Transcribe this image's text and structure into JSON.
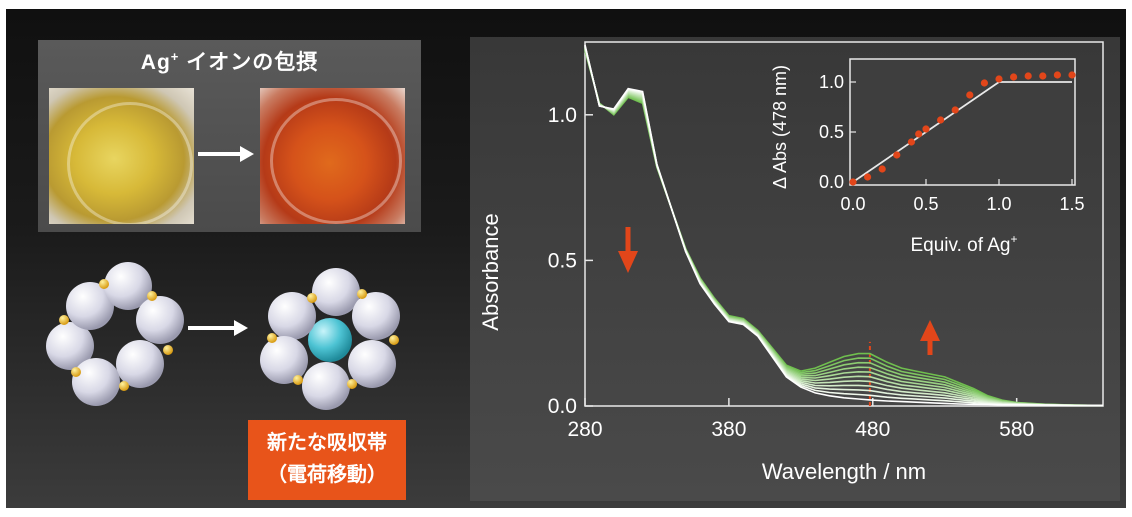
{
  "photos": {
    "title_main": "Ag",
    "title_sup": "+",
    "title_rest": " イオンの包摂",
    "before_color": "#d7b938",
    "after_color": "#d5521a"
  },
  "band_label": {
    "line1": "新たな吸収帯",
    "line2": "（電荷移動）",
    "color": "#e8541a"
  },
  "chart_data": [
    {
      "type": "line",
      "xlabel": "Wavelength / nm",
      "ylabel": "Absorbance",
      "xlim": [
        280,
        640
      ],
      "ylim": [
        0,
        1.25
      ],
      "xticks": [
        280,
        380,
        480,
        580
      ],
      "yticks": [
        0.0,
        0.5,
        1.0
      ],
      "ytick_labels": [
        "0.0",
        "0.5",
        "1.0"
      ],
      "marker_line_x": 478,
      "series_count": 11,
      "series_color_start": "#ffffff",
      "series_color_end": "#6fbf4e",
      "x": [
        280,
        290,
        300,
        310,
        320,
        330,
        340,
        350,
        360,
        370,
        380,
        390,
        400,
        410,
        420,
        430,
        440,
        450,
        460,
        470,
        478,
        490,
        500,
        510,
        520,
        530,
        540,
        550,
        560,
        570,
        580,
        600,
        620,
        640
      ],
      "series": [
        {
          "values": [
            1.24,
            1.03,
            1.02,
            1.09,
            1.08,
            0.83,
            0.68,
            0.53,
            0.42,
            0.35,
            0.29,
            0.28,
            0.24,
            0.17,
            0.1,
            0.065,
            0.045,
            0.035,
            0.028,
            0.024,
            0.021,
            0.017,
            0.015,
            0.013,
            0.011,
            0.009,
            0.007,
            0.006,
            0.005,
            0.004,
            0.004,
            0.003,
            0.002,
            0.002
          ]
        },
        {
          "values": [
            1.22,
            1.04,
            1.0,
            1.06,
            1.04,
            0.82,
            0.68,
            0.54,
            0.44,
            0.37,
            0.31,
            0.3,
            0.26,
            0.2,
            0.14,
            0.12,
            0.13,
            0.15,
            0.17,
            0.18,
            0.18,
            0.15,
            0.13,
            0.12,
            0.11,
            0.1,
            0.08,
            0.06,
            0.035,
            0.02,
            0.012,
            0.006,
            0.003,
            0.002
          ]
        }
      ],
      "arrow_down_color": "#e2461a",
      "arrow_up_color": "#e2461a"
    },
    {
      "type": "scatter",
      "xlabel_main": "Equiv. of Ag",
      "xlabel_sup": "+",
      "ylabel": "Δ Abs (478 nm)",
      "xlim": [
        0,
        1.5
      ],
      "ylim": [
        0,
        1.2
      ],
      "xticks": [
        0.0,
        0.5,
        1.0,
        1.5
      ],
      "xtick_labels": [
        "0.0",
        "0.5",
        "1.0",
        "1.5"
      ],
      "yticks": [
        0.0,
        0.5,
        1.0
      ],
      "ytick_labels": [
        "0.0",
        "0.5",
        "1.0"
      ],
      "x": [
        0.0,
        0.1,
        0.2,
        0.3,
        0.4,
        0.45,
        0.5,
        0.6,
        0.7,
        0.8,
        0.9,
        1.0,
        1.1,
        1.2,
        1.3,
        1.4,
        1.5
      ],
      "y": [
        0.0,
        0.05,
        0.13,
        0.27,
        0.4,
        0.48,
        0.53,
        0.62,
        0.72,
        0.87,
        0.99,
        1.03,
        1.05,
        1.06,
        1.06,
        1.07,
        1.07
      ],
      "fit_x": [
        0.0,
        1.0,
        1.5
      ],
      "fit_y": [
        0.0,
        1.0,
        1.0
      ],
      "point_color": "#e2461a"
    }
  ]
}
